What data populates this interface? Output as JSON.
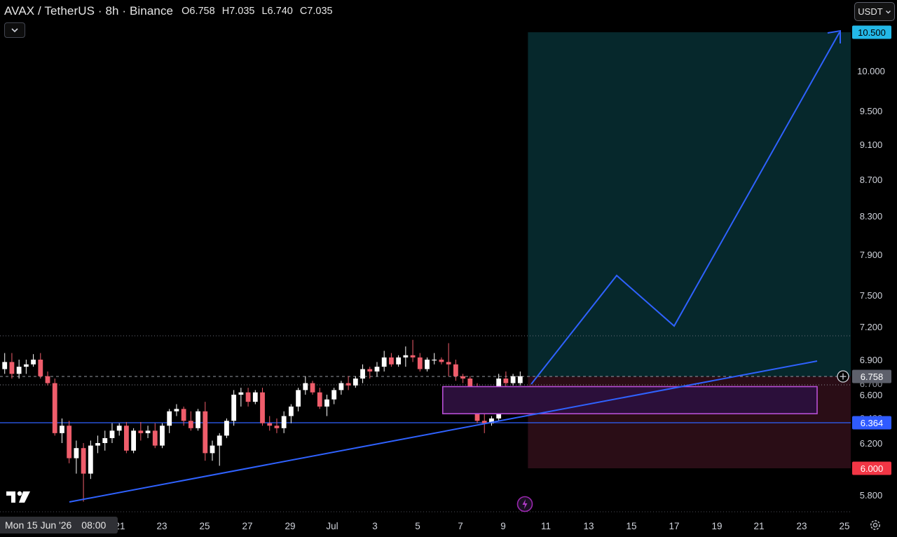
{
  "header": {
    "symbol_title": "AVAX / TetherUS · 8h · Binance",
    "open": "O6.758",
    "high": "H7.035",
    "low": "L6.740",
    "close": "C7.035"
  },
  "currency_selector": {
    "label": "USDT"
  },
  "cursor_tooltip": {
    "date": "Mon 15 Jun '26",
    "time": "08:00"
  },
  "price_axis": {
    "ticks": [
      "10.000",
      "9.500",
      "9.100",
      "8.700",
      "8.300",
      "7.900",
      "7.500",
      "7.200",
      "6.900",
      "6.600",
      "6.200",
      "5.800"
    ],
    "badges": {
      "target": "10.500",
      "current": "6.758",
      "current_hidden": "6.7??",
      "line": "6.364",
      "stop": "6.000"
    }
  },
  "time_axis": {
    "labels": [
      "21",
      "23",
      "25",
      "27",
      "29",
      "Jul",
      "3",
      "5",
      "7",
      "9",
      "11",
      "13",
      "15",
      "17",
      "19",
      "21",
      "23",
      "25"
    ]
  },
  "colors": {
    "background": "#000000",
    "up_candle": "#ffffff",
    "down_candle": "#ef5d6b",
    "target_zone": "#06282c",
    "stop_zone": "#2a0d16",
    "entry_box": "#2b0f3a",
    "trendline": "#2f62ff",
    "target_badge": "#23b8e8",
    "line_badge": "#2f5bff",
    "stop_badge": "#f23645"
  },
  "icons": {
    "collapse": "chevron-down-icon",
    "currency": "chevron-down-icon",
    "logo": "tradingview-logo-icon",
    "settings": "gear-icon",
    "crosshair_add": "plus-circle-icon",
    "alert": "lightning-icon"
  },
  "chart_data": {
    "type": "candlestick",
    "timeframe": "8h",
    "symbol": "AVAX / TetherUS",
    "exchange": "Binance",
    "axis_prices": [
      10.0,
      9.5,
      9.1,
      8.7,
      8.3,
      7.9,
      7.5,
      7.2,
      6.9,
      6.6,
      6.2,
      5.8
    ],
    "levels": {
      "target": 10.5,
      "last": 6.758,
      "support_line": 6.364,
      "stop": 6.0
    },
    "entry_zone": {
      "from_date": "Jul 6",
      "to_date": "Jul 23",
      "low": 6.44,
      "high": 6.67
    },
    "candles": [
      {
        "o": 6.92,
        "h": 6.98,
        "l": 6.78,
        "c": 6.82
      },
      {
        "o": 6.82,
        "h": 6.96,
        "l": 6.78,
        "c": 6.88
      },
      {
        "o": 6.88,
        "h": 6.96,
        "l": 6.74,
        "c": 6.78
      },
      {
        "o": 6.78,
        "h": 6.9,
        "l": 6.74,
        "c": 6.84
      },
      {
        "o": 6.84,
        "h": 6.9,
        "l": 6.78,
        "c": 6.86
      },
      {
        "o": 6.86,
        "h": 6.95,
        "l": 6.84,
        "c": 6.9
      },
      {
        "o": 6.9,
        "h": 6.96,
        "l": 6.74,
        "c": 6.76
      },
      {
        "o": 6.76,
        "h": 6.8,
        "l": 6.68,
        "c": 6.7
      },
      {
        "o": 6.7,
        "h": 6.74,
        "l": 6.26,
        "c": 6.28
      },
      {
        "o": 6.28,
        "h": 6.4,
        "l": 6.2,
        "c": 6.34
      },
      {
        "o": 6.34,
        "h": 6.38,
        "l": 6.04,
        "c": 6.08
      },
      {
        "o": 6.08,
        "h": 6.22,
        "l": 5.96,
        "c": 6.16
      },
      {
        "o": 6.16,
        "h": 6.2,
        "l": 5.75,
        "c": 5.96
      },
      {
        "o": 5.96,
        "h": 6.22,
        "l": 5.92,
        "c": 6.18
      },
      {
        "o": 6.18,
        "h": 6.26,
        "l": 6.12,
        "c": 6.2
      },
      {
        "o": 6.2,
        "h": 6.3,
        "l": 6.14,
        "c": 6.24
      },
      {
        "o": 6.24,
        "h": 6.36,
        "l": 6.2,
        "c": 6.3
      },
      {
        "o": 6.3,
        "h": 6.36,
        "l": 6.26,
        "c": 6.34
      },
      {
        "o": 6.34,
        "h": 6.37,
        "l": 6.12,
        "c": 6.14
      },
      {
        "o": 6.14,
        "h": 6.32,
        "l": 6.12,
        "c": 6.3
      },
      {
        "o": 6.3,
        "h": 6.37,
        "l": 6.22,
        "c": 6.28
      },
      {
        "o": 6.28,
        "h": 6.34,
        "l": 6.24,
        "c": 6.3
      },
      {
        "o": 6.3,
        "h": 6.36,
        "l": 6.16,
        "c": 6.18
      },
      {
        "o": 6.18,
        "h": 6.36,
        "l": 6.16,
        "c": 6.34
      },
      {
        "o": 6.34,
        "h": 6.48,
        "l": 6.28,
        "c": 6.46
      },
      {
        "o": 6.46,
        "h": 6.52,
        "l": 6.42,
        "c": 6.48
      },
      {
        "o": 6.48,
        "h": 6.5,
        "l": 6.34,
        "c": 6.38
      },
      {
        "o": 6.38,
        "h": 6.46,
        "l": 6.3,
        "c": 6.32
      },
      {
        "o": 6.32,
        "h": 6.48,
        "l": 6.3,
        "c": 6.46
      },
      {
        "o": 6.46,
        "h": 6.54,
        "l": 6.06,
        "c": 6.12
      },
      {
        "o": 6.12,
        "h": 6.22,
        "l": 6.06,
        "c": 6.18
      },
      {
        "o": 6.18,
        "h": 6.28,
        "l": 6.02,
        "c": 6.26
      },
      {
        "o": 6.26,
        "h": 6.4,
        "l": 6.24,
        "c": 6.38
      },
      {
        "o": 6.38,
        "h": 6.64,
        "l": 6.34,
        "c": 6.6
      },
      {
        "o": 6.6,
        "h": 6.66,
        "l": 6.5,
        "c": 6.62
      },
      {
        "o": 6.62,
        "h": 6.66,
        "l": 6.5,
        "c": 6.54
      },
      {
        "o": 6.54,
        "h": 6.64,
        "l": 6.52,
        "c": 6.62
      },
      {
        "o": 6.62,
        "h": 6.66,
        "l": 6.34,
        "c": 6.36
      },
      {
        "o": 6.36,
        "h": 6.42,
        "l": 6.3,
        "c": 6.34
      },
      {
        "o": 6.34,
        "h": 6.4,
        "l": 6.28,
        "c": 6.32
      },
      {
        "o": 6.32,
        "h": 6.46,
        "l": 6.28,
        "c": 6.42
      },
      {
        "o": 6.42,
        "h": 6.52,
        "l": 6.36,
        "c": 6.5
      },
      {
        "o": 6.5,
        "h": 6.66,
        "l": 6.46,
        "c": 6.64
      },
      {
        "o": 6.64,
        "h": 6.76,
        "l": 6.6,
        "c": 6.7
      },
      {
        "o": 6.7,
        "h": 6.72,
        "l": 6.6,
        "c": 6.62
      },
      {
        "o": 6.62,
        "h": 6.66,
        "l": 6.48,
        "c": 6.5
      },
      {
        "o": 6.5,
        "h": 6.6,
        "l": 6.42,
        "c": 6.56
      },
      {
        "o": 6.56,
        "h": 6.66,
        "l": 6.52,
        "c": 6.64
      },
      {
        "o": 6.64,
        "h": 6.72,
        "l": 6.6,
        "c": 6.7
      },
      {
        "o": 6.7,
        "h": 6.76,
        "l": 6.64,
        "c": 6.68
      },
      {
        "o": 6.68,
        "h": 6.76,
        "l": 6.66,
        "c": 6.74
      },
      {
        "o": 6.74,
        "h": 6.86,
        "l": 6.7,
        "c": 6.82
      },
      {
        "o": 6.82,
        "h": 6.84,
        "l": 6.74,
        "c": 6.8
      },
      {
        "o": 6.8,
        "h": 6.88,
        "l": 6.76,
        "c": 6.84
      },
      {
        "o": 6.84,
        "h": 6.98,
        "l": 6.8,
        "c": 6.92
      },
      {
        "o": 6.92,
        "h": 6.96,
        "l": 6.84,
        "c": 6.86
      },
      {
        "o": 6.86,
        "h": 6.94,
        "l": 6.84,
        "c": 6.92
      },
      {
        "o": 6.92,
        "h": 7.02,
        "l": 6.84,
        "c": 6.94
      },
      {
        "o": 6.94,
        "h": 7.08,
        "l": 6.88,
        "c": 6.92
      },
      {
        "o": 6.92,
        "h": 6.96,
        "l": 6.8,
        "c": 6.82
      },
      {
        "o": 6.82,
        "h": 6.92,
        "l": 6.8,
        "c": 6.9
      },
      {
        "o": 6.9,
        "h": 6.96,
        "l": 6.86,
        "c": 6.9
      },
      {
        "o": 6.9,
        "h": 6.92,
        "l": 6.86,
        "c": 6.88
      },
      {
        "o": 6.88,
        "h": 7.05,
        "l": 6.76,
        "c": 6.86
      },
      {
        "o": 6.86,
        "h": 6.9,
        "l": 6.72,
        "c": 6.76
      },
      {
        "o": 6.76,
        "h": 6.78,
        "l": 6.7,
        "c": 6.74
      },
      {
        "o": 6.74,
        "h": 6.76,
        "l": 6.62,
        "c": 6.66
      },
      {
        "o": 6.66,
        "h": 6.7,
        "l": 6.36,
        "c": 6.38
      },
      {
        "o": 6.38,
        "h": 6.46,
        "l": 6.28,
        "c": 6.36
      },
      {
        "o": 6.36,
        "h": 6.42,
        "l": 6.34,
        "c": 6.4
      },
      {
        "o": 6.4,
        "h": 6.78,
        "l": 6.38,
        "c": 6.74
      },
      {
        "o": 6.74,
        "h": 6.8,
        "l": 6.66,
        "c": 6.7
      },
      {
        "o": 6.7,
        "h": 6.78,
        "l": 6.68,
        "c": 6.76
      },
      {
        "o": 6.7,
        "h": 6.8,
        "l": 6.68,
        "c": 6.76
      }
    ],
    "projection_path": [
      {
        "date": "Jul 10",
        "price": 6.7
      },
      {
        "date": "Jul 14",
        "price": 7.6
      },
      {
        "date": "Jul 17",
        "price": 7.2
      },
      {
        "date": "Jul 24",
        "price": 10.5
      }
    ],
    "trendline": [
      {
        "date": "Jun 18",
        "price": 5.79
      },
      {
        "date": "Jul 23",
        "price": 6.91
      }
    ]
  }
}
